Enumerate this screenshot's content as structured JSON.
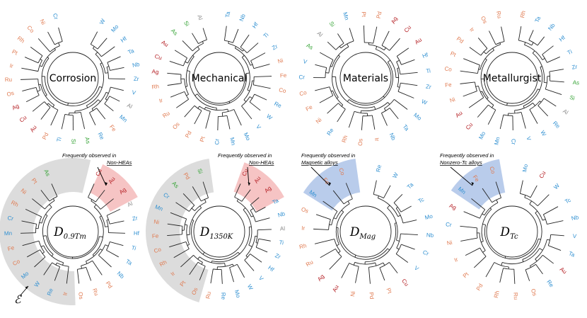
{
  "colors": {
    "blue": "#2e8fd1",
    "orange": "#e07a50",
    "red": "#b52025",
    "green": "#35a335",
    "gray": "#8a8a8a",
    "group_gray": "#dcdcdc",
    "group_pink": "#f6c4c4",
    "group_blue": "#b9cceb"
  },
  "dendrograms": [
    {
      "id": "corrosion",
      "title": "Corrosion",
      "leaves": [
        {
          "label": "W",
          "color": "blue"
        },
        {
          "label": "Mo",
          "color": "blue"
        },
        {
          "label": "Hf",
          "color": "blue"
        },
        {
          "label": "Ta",
          "color": "blue"
        },
        {
          "label": "Nb",
          "color": "blue"
        },
        {
          "label": "Zr",
          "color": "blue"
        },
        {
          "label": "V",
          "color": "blue"
        },
        {
          "label": "Al",
          "color": "gray"
        },
        {
          "label": "Mn",
          "color": "blue"
        },
        {
          "label": "Fe",
          "color": "orange"
        },
        {
          "label": "Re",
          "color": "blue"
        },
        {
          "label": "As",
          "color": "green"
        },
        {
          "label": "Si",
          "color": "green"
        },
        {
          "label": "Ti",
          "color": "blue"
        },
        {
          "label": "Pd",
          "color": "orange"
        },
        {
          "label": "Au",
          "color": "red"
        },
        {
          "label": "Cu",
          "color": "red"
        },
        {
          "label": "Ag",
          "color": "red"
        },
        {
          "label": "Os",
          "color": "orange"
        },
        {
          "label": "Ru",
          "color": "orange"
        },
        {
          "label": "Ir",
          "color": "orange"
        },
        {
          "label": "Pt",
          "color": "orange"
        },
        {
          "label": "Rh",
          "color": "orange"
        },
        {
          "label": "Co",
          "color": "orange"
        },
        {
          "label": "Ni",
          "color": "orange"
        },
        {
          "label": "Cr",
          "color": "blue"
        }
      ]
    },
    {
      "id": "mechanical",
      "title": "Mechanical",
      "leaves": [
        {
          "label": "Ta",
          "color": "blue"
        },
        {
          "label": "Nb",
          "color": "blue"
        },
        {
          "label": "Hf",
          "color": "blue"
        },
        {
          "label": "Ti",
          "color": "blue"
        },
        {
          "label": "Zr",
          "color": "blue"
        },
        {
          "label": "Ni",
          "color": "orange"
        },
        {
          "label": "Fe",
          "color": "orange"
        },
        {
          "label": "Co",
          "color": "orange"
        },
        {
          "label": "Re",
          "color": "blue"
        },
        {
          "label": "W",
          "color": "blue"
        },
        {
          "label": "V",
          "color": "blue"
        },
        {
          "label": "Mo",
          "color": "blue"
        },
        {
          "label": "Mn",
          "color": "blue"
        },
        {
          "label": "Cr",
          "color": "blue"
        },
        {
          "label": "Pt",
          "color": "orange"
        },
        {
          "label": "Pd",
          "color": "orange"
        },
        {
          "label": "Os",
          "color": "orange"
        },
        {
          "label": "Ru",
          "color": "orange"
        },
        {
          "label": "Ir",
          "color": "orange"
        },
        {
          "label": "Rh",
          "color": "orange"
        },
        {
          "label": "Ag",
          "color": "red"
        },
        {
          "label": "Cu",
          "color": "red"
        },
        {
          "label": "Au",
          "color": "red"
        },
        {
          "label": "As",
          "color": "green"
        },
        {
          "label": "Si",
          "color": "green"
        },
        {
          "label": "Al",
          "color": "gray"
        }
      ]
    },
    {
      "id": "materials",
      "title": "Materials",
      "leaves": [
        {
          "label": "Pt",
          "color": "orange"
        },
        {
          "label": "Pd",
          "color": "orange"
        },
        {
          "label": "Ag",
          "color": "red"
        },
        {
          "label": "Cu",
          "color": "red"
        },
        {
          "label": "Au",
          "color": "red"
        },
        {
          "label": "Hf",
          "color": "blue"
        },
        {
          "label": "Ti",
          "color": "blue"
        },
        {
          "label": "Zr",
          "color": "blue"
        },
        {
          "label": "W",
          "color": "blue"
        },
        {
          "label": "Mo",
          "color": "blue"
        },
        {
          "label": "Ta",
          "color": "blue"
        },
        {
          "label": "Nb",
          "color": "blue"
        },
        {
          "label": "Ir",
          "color": "orange"
        },
        {
          "label": "Os",
          "color": "orange"
        },
        {
          "label": "Rh",
          "color": "orange"
        },
        {
          "label": "Re",
          "color": "blue"
        },
        {
          "label": "Ni",
          "color": "orange"
        },
        {
          "label": "Fe",
          "color": "orange"
        },
        {
          "label": "Co",
          "color": "orange"
        },
        {
          "label": "Cr",
          "color": "blue"
        },
        {
          "label": "V",
          "color": "blue"
        },
        {
          "label": "As",
          "color": "green"
        },
        {
          "label": "Al",
          "color": "gray"
        },
        {
          "label": "Si",
          "color": "green"
        },
        {
          "label": "Mn",
          "color": "blue"
        }
      ]
    },
    {
      "id": "metallurgist",
      "title": "Metallurgist",
      "leaves": [
        {
          "label": "Rh",
          "color": "orange"
        },
        {
          "label": "Ta",
          "color": "blue"
        },
        {
          "label": "Nb",
          "color": "blue"
        },
        {
          "label": "Hf",
          "color": "blue"
        },
        {
          "label": "Ti",
          "color": "blue"
        },
        {
          "label": "Zr",
          "color": "blue"
        },
        {
          "label": "As",
          "color": "green"
        },
        {
          "label": "Si",
          "color": "green"
        },
        {
          "label": "Al",
          "color": "gray"
        },
        {
          "label": "Re",
          "color": "blue"
        },
        {
          "label": "W",
          "color": "blue"
        },
        {
          "label": "V",
          "color": "blue"
        },
        {
          "label": "Cr",
          "color": "blue"
        },
        {
          "label": "Mn",
          "color": "blue"
        },
        {
          "label": "Mo",
          "color": "blue"
        },
        {
          "label": "Cu",
          "color": "red"
        },
        {
          "label": "Au",
          "color": "red"
        },
        {
          "label": "Ni",
          "color": "orange"
        },
        {
          "label": "Fe",
          "color": "orange"
        },
        {
          "label": "Co",
          "color": "orange"
        },
        {
          "label": "Pt",
          "color": "orange"
        },
        {
          "label": "Pd",
          "color": "orange"
        },
        {
          "label": "Ir",
          "color": "orange"
        },
        {
          "label": "Os",
          "color": "orange"
        },
        {
          "label": "Ru",
          "color": "orange"
        }
      ]
    },
    {
      "id": "d09tm",
      "title_main": "D",
      "title_sub": "0.9Tm",
      "leaves": [
        {
          "label": "Cu",
          "color": "red"
        },
        {
          "label": "Au",
          "color": "red"
        },
        {
          "label": "Ag",
          "color": "red"
        },
        {
          "label": "Al",
          "color": "gray"
        },
        {
          "label": "Zr",
          "color": "blue"
        },
        {
          "label": "Hf",
          "color": "blue"
        },
        {
          "label": "Ti",
          "color": "blue"
        },
        {
          "label": "Ta",
          "color": "blue"
        },
        {
          "label": "Nb",
          "color": "blue"
        },
        {
          "label": "Pd",
          "color": "orange"
        },
        {
          "label": "Ru",
          "color": "orange"
        },
        {
          "label": "Os",
          "color": "orange"
        },
        {
          "label": "Ir",
          "color": "orange"
        },
        {
          "label": "Re",
          "color": "blue"
        },
        {
          "label": "W",
          "color": "blue"
        },
        {
          "label": "Mo",
          "color": "blue"
        },
        {
          "label": "Co",
          "color": "orange"
        },
        {
          "label": "Fe",
          "color": "orange"
        },
        {
          "label": "Mn",
          "color": "blue"
        },
        {
          "label": "Cr",
          "color": "blue"
        },
        {
          "label": "Rh",
          "color": "orange"
        },
        {
          "label": "Ni",
          "color": "orange"
        },
        {
          "label": "Pt",
          "color": "orange"
        },
        {
          "label": "As",
          "color": "green"
        }
      ],
      "annotation": [
        "Frequently observed in",
        "Non-HEAs"
      ],
      "epsilon": "ℰ"
    },
    {
      "id": "d1350k",
      "title_main": "D",
      "title_sub": "1350K",
      "leaves": [
        {
          "label": "Cu",
          "color": "red"
        },
        {
          "label": "Au",
          "color": "red"
        },
        {
          "label": "Ag",
          "color": "red"
        },
        {
          "label": "Ta",
          "color": "blue"
        },
        {
          "label": "Nb",
          "color": "blue"
        },
        {
          "label": "Al",
          "color": "gray"
        },
        {
          "label": "Ti",
          "color": "blue"
        },
        {
          "label": "Zr",
          "color": "blue"
        },
        {
          "label": "Hf",
          "color": "blue"
        },
        {
          "label": "V",
          "color": "blue"
        },
        {
          "label": "W",
          "color": "blue"
        },
        {
          "label": "Mo",
          "color": "blue"
        },
        {
          "label": "Re",
          "color": "blue"
        },
        {
          "label": "Ru",
          "color": "orange"
        },
        {
          "label": "Os",
          "color": "orange"
        },
        {
          "label": "Pt",
          "color": "orange"
        },
        {
          "label": "Ir",
          "color": "orange"
        },
        {
          "label": "Rh",
          "color": "orange"
        },
        {
          "label": "Co",
          "color": "orange"
        },
        {
          "label": "Fe",
          "color": "orange"
        },
        {
          "label": "Ni",
          "color": "orange"
        },
        {
          "label": "Mn",
          "color": "blue"
        },
        {
          "label": "Cr",
          "color": "blue"
        },
        {
          "label": "As",
          "color": "green"
        },
        {
          "label": "Pd",
          "color": "orange"
        },
        {
          "label": "Si",
          "color": "green"
        }
      ],
      "annotation": [
        "Frequently observed in",
        "Non-HEAs"
      ]
    },
    {
      "id": "dmag",
      "title_main": "D",
      "title_sub": "Mag",
      "leaves": [
        {
          "label": "Re",
          "color": "blue"
        },
        {
          "label": "W",
          "color": "blue"
        },
        {
          "label": "Ta",
          "color": "blue"
        },
        {
          "label": "Tc",
          "color": "blue"
        },
        {
          "label": "Mo",
          "color": "blue"
        },
        {
          "label": "Nb",
          "color": "blue"
        },
        {
          "label": "Cr",
          "color": "blue"
        },
        {
          "label": "V",
          "color": "blue"
        },
        {
          "label": "Cu",
          "color": "red"
        },
        {
          "label": "Pt",
          "color": "orange"
        },
        {
          "label": "Pd",
          "color": "orange"
        },
        {
          "label": "Ni",
          "color": "orange"
        },
        {
          "label": "Au",
          "color": "red"
        },
        {
          "label": "Ag",
          "color": "red"
        },
        {
          "label": "Ru",
          "color": "orange"
        },
        {
          "label": "Rh",
          "color": "orange"
        },
        {
          "label": "Ir",
          "color": "orange"
        },
        {
          "label": "Os",
          "color": "orange"
        },
        {
          "label": "Mn",
          "color": "blue"
        },
        {
          "label": "Fe",
          "color": "orange"
        },
        {
          "label": "Co",
          "color": "orange"
        }
      ],
      "annotation": [
        "Frequently observed in",
        "Magnetic alloys"
      ]
    },
    {
      "id": "dtc",
      "title_main": "D",
      "title_sub": "Tc",
      "leaves": [
        {
          "label": "Mo",
          "color": "blue"
        },
        {
          "label": "Cu",
          "color": "red"
        },
        {
          "label": "W",
          "color": "blue"
        },
        {
          "label": "Tc",
          "color": "blue"
        },
        {
          "label": "Nb",
          "color": "blue"
        },
        {
          "label": "V",
          "color": "blue"
        },
        {
          "label": "Ta",
          "color": "blue"
        },
        {
          "label": "Au",
          "color": "red"
        },
        {
          "label": "Re",
          "color": "blue"
        },
        {
          "label": "Os",
          "color": "orange"
        },
        {
          "label": "Ru",
          "color": "orange"
        },
        {
          "label": "Rh",
          "color": "orange"
        },
        {
          "label": "Pd",
          "color": "orange"
        },
        {
          "label": "Pt",
          "color": "orange"
        },
        {
          "label": "Ir",
          "color": "orange"
        },
        {
          "label": "Ni",
          "color": "orange"
        },
        {
          "label": "Cr",
          "color": "blue"
        },
        {
          "label": "Ag",
          "color": "red"
        },
        {
          "label": "Mn",
          "color": "blue"
        },
        {
          "label": "Fe",
          "color": "orange"
        },
        {
          "label": "Co",
          "color": "orange"
        }
      ],
      "annotation": [
        "Frequently observed in",
        "Nonzero-Tc alloys"
      ]
    }
  ]
}
